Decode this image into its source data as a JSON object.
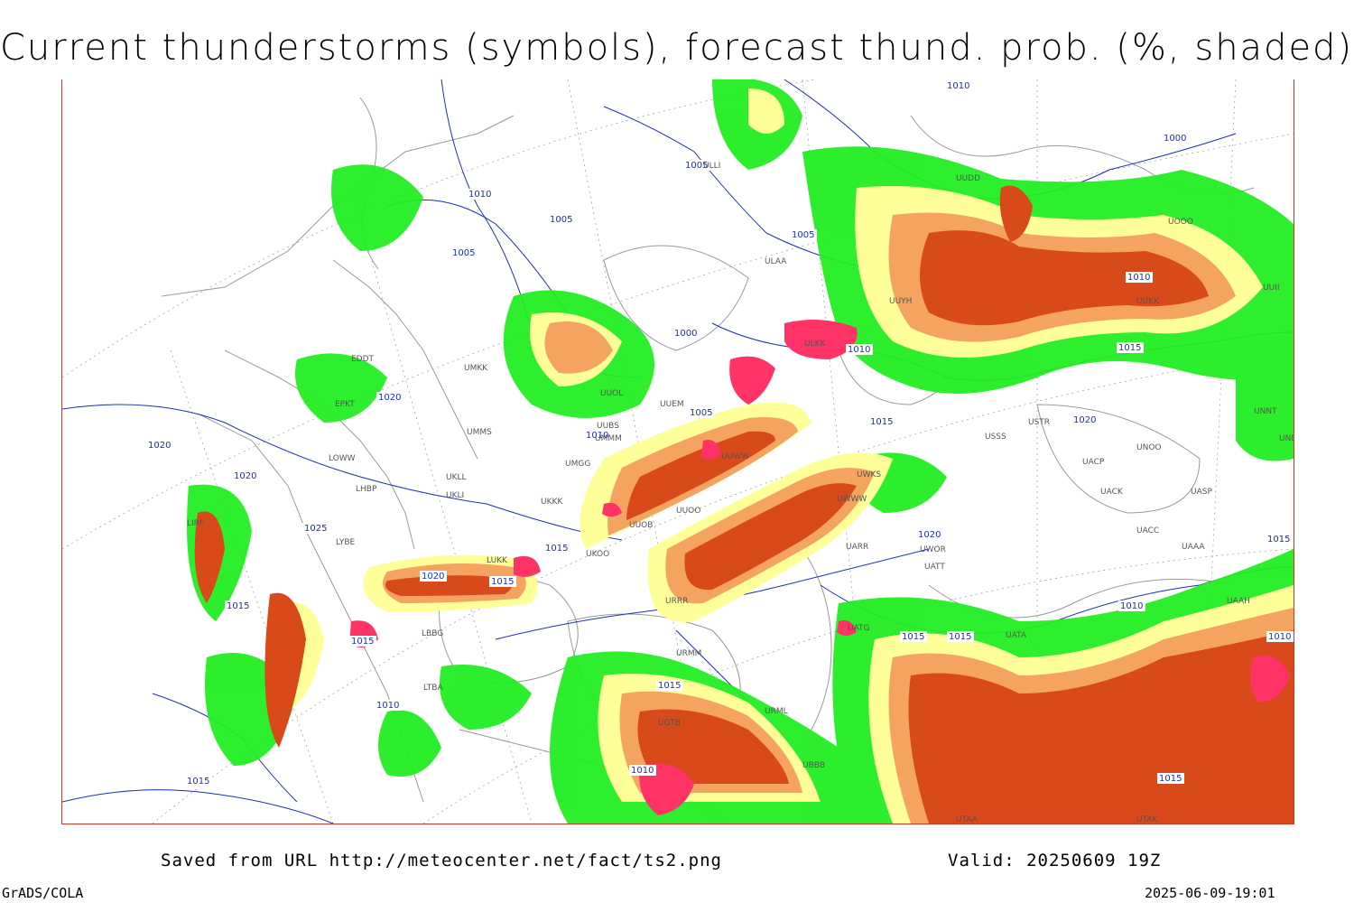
{
  "title": "Current thunderstorms (symbols), forecast thund. prob. (%, shaded)",
  "footer": {
    "saved_from": "Saved from URL http://meteocenter.net/fact/ts2.png",
    "valid": "Valid: 20250609 19Z"
  },
  "credit": "GrADS/COLA",
  "timestamp": "2025-06-09-19:01",
  "colors": {
    "prob_low": "#22ee22",
    "prob_mid": "#ffff99",
    "prob_high1": "#f4a460",
    "prob_high2": "#d94a1a",
    "current_storm": "#ff3366",
    "isobar": "#1a2fb8",
    "border": "#9a9a9a"
  },
  "isobar_labels": [
    {
      "text": "1010"
    },
    {
      "text": "1005"
    },
    {
      "text": "1005"
    },
    {
      "text": "1010"
    },
    {
      "text": "1005"
    },
    {
      "text": "1005"
    },
    {
      "text": "1000"
    },
    {
      "text": "1010"
    },
    {
      "text": "1010"
    },
    {
      "text": "1015"
    },
    {
      "text": "1020"
    },
    {
      "text": "1005"
    },
    {
      "text": "1010"
    },
    {
      "text": "1015"
    },
    {
      "text": "1020"
    },
    {
      "text": "1020"
    },
    {
      "text": "1020"
    },
    {
      "text": "1025"
    },
    {
      "text": "1015"
    },
    {
      "text": "1020"
    },
    {
      "text": "1015"
    },
    {
      "text": "1015"
    },
    {
      "text": "1015"
    },
    {
      "text": "1020"
    },
    {
      "text": "1015"
    },
    {
      "text": "1015"
    },
    {
      "text": "1010"
    },
    {
      "text": "1010"
    },
    {
      "text": "1010"
    },
    {
      "text": "1015"
    },
    {
      "text": "1015"
    },
    {
      "text": "1015"
    },
    {
      "text": "1010"
    },
    {
      "text": "1015"
    },
    {
      "text": "1010"
    },
    {
      "text": "1000"
    }
  ],
  "station_labels": [
    {
      "text": "ULLI"
    },
    {
      "text": "ULAA"
    },
    {
      "text": "UUYH"
    },
    {
      "text": "ULKK"
    },
    {
      "text": "UUEM"
    },
    {
      "text": "UMKK"
    },
    {
      "text": "UMMS"
    },
    {
      "text": "UUBS"
    },
    {
      "text": "UMGG"
    },
    {
      "text": "UKKK"
    },
    {
      "text": "UKLL"
    },
    {
      "text": "UKLI"
    },
    {
      "text": "LOWW"
    },
    {
      "text": "LHBP"
    },
    {
      "text": "LYBE"
    },
    {
      "text": "LUKK"
    },
    {
      "text": "UKOO"
    },
    {
      "text": "LBBG"
    },
    {
      "text": "UUOB"
    },
    {
      "text": "URRR"
    },
    {
      "text": "UUOO"
    },
    {
      "text": "UWWW"
    },
    {
      "text": "UWKS"
    },
    {
      "text": "USSS"
    },
    {
      "text": "USTR"
    },
    {
      "text": "UNOO"
    },
    {
      "text": "UACP"
    },
    {
      "text": "UACK"
    },
    {
      "text": "UASP"
    },
    {
      "text": "UAAA"
    },
    {
      "text": "UACC"
    },
    {
      "text": "UARR"
    },
    {
      "text": "UATT"
    },
    {
      "text": "UWOR"
    },
    {
      "text": "URMM"
    },
    {
      "text": "URML"
    },
    {
      "text": "UGTB"
    },
    {
      "text": "UBBB"
    },
    {
      "text": "UTAA"
    },
    {
      "text": "UTAK"
    },
    {
      "text": "UNNT"
    },
    {
      "text": "UNBB"
    },
    {
      "text": "UATG"
    },
    {
      "text": "UATA"
    },
    {
      "text": "UAAH"
    },
    {
      "text": "LIRF"
    },
    {
      "text": "EDDT"
    },
    {
      "text": "UMMM"
    },
    {
      "text": "LTBA"
    },
    {
      "text": "UUDD"
    },
    {
      "text": "UUWW"
    },
    {
      "text": "UUOL"
    },
    {
      "text": "EPKT"
    },
    {
      "text": "UOOO"
    },
    {
      "text": "UUII"
    },
    {
      "text": "UUKK"
    }
  ]
}
